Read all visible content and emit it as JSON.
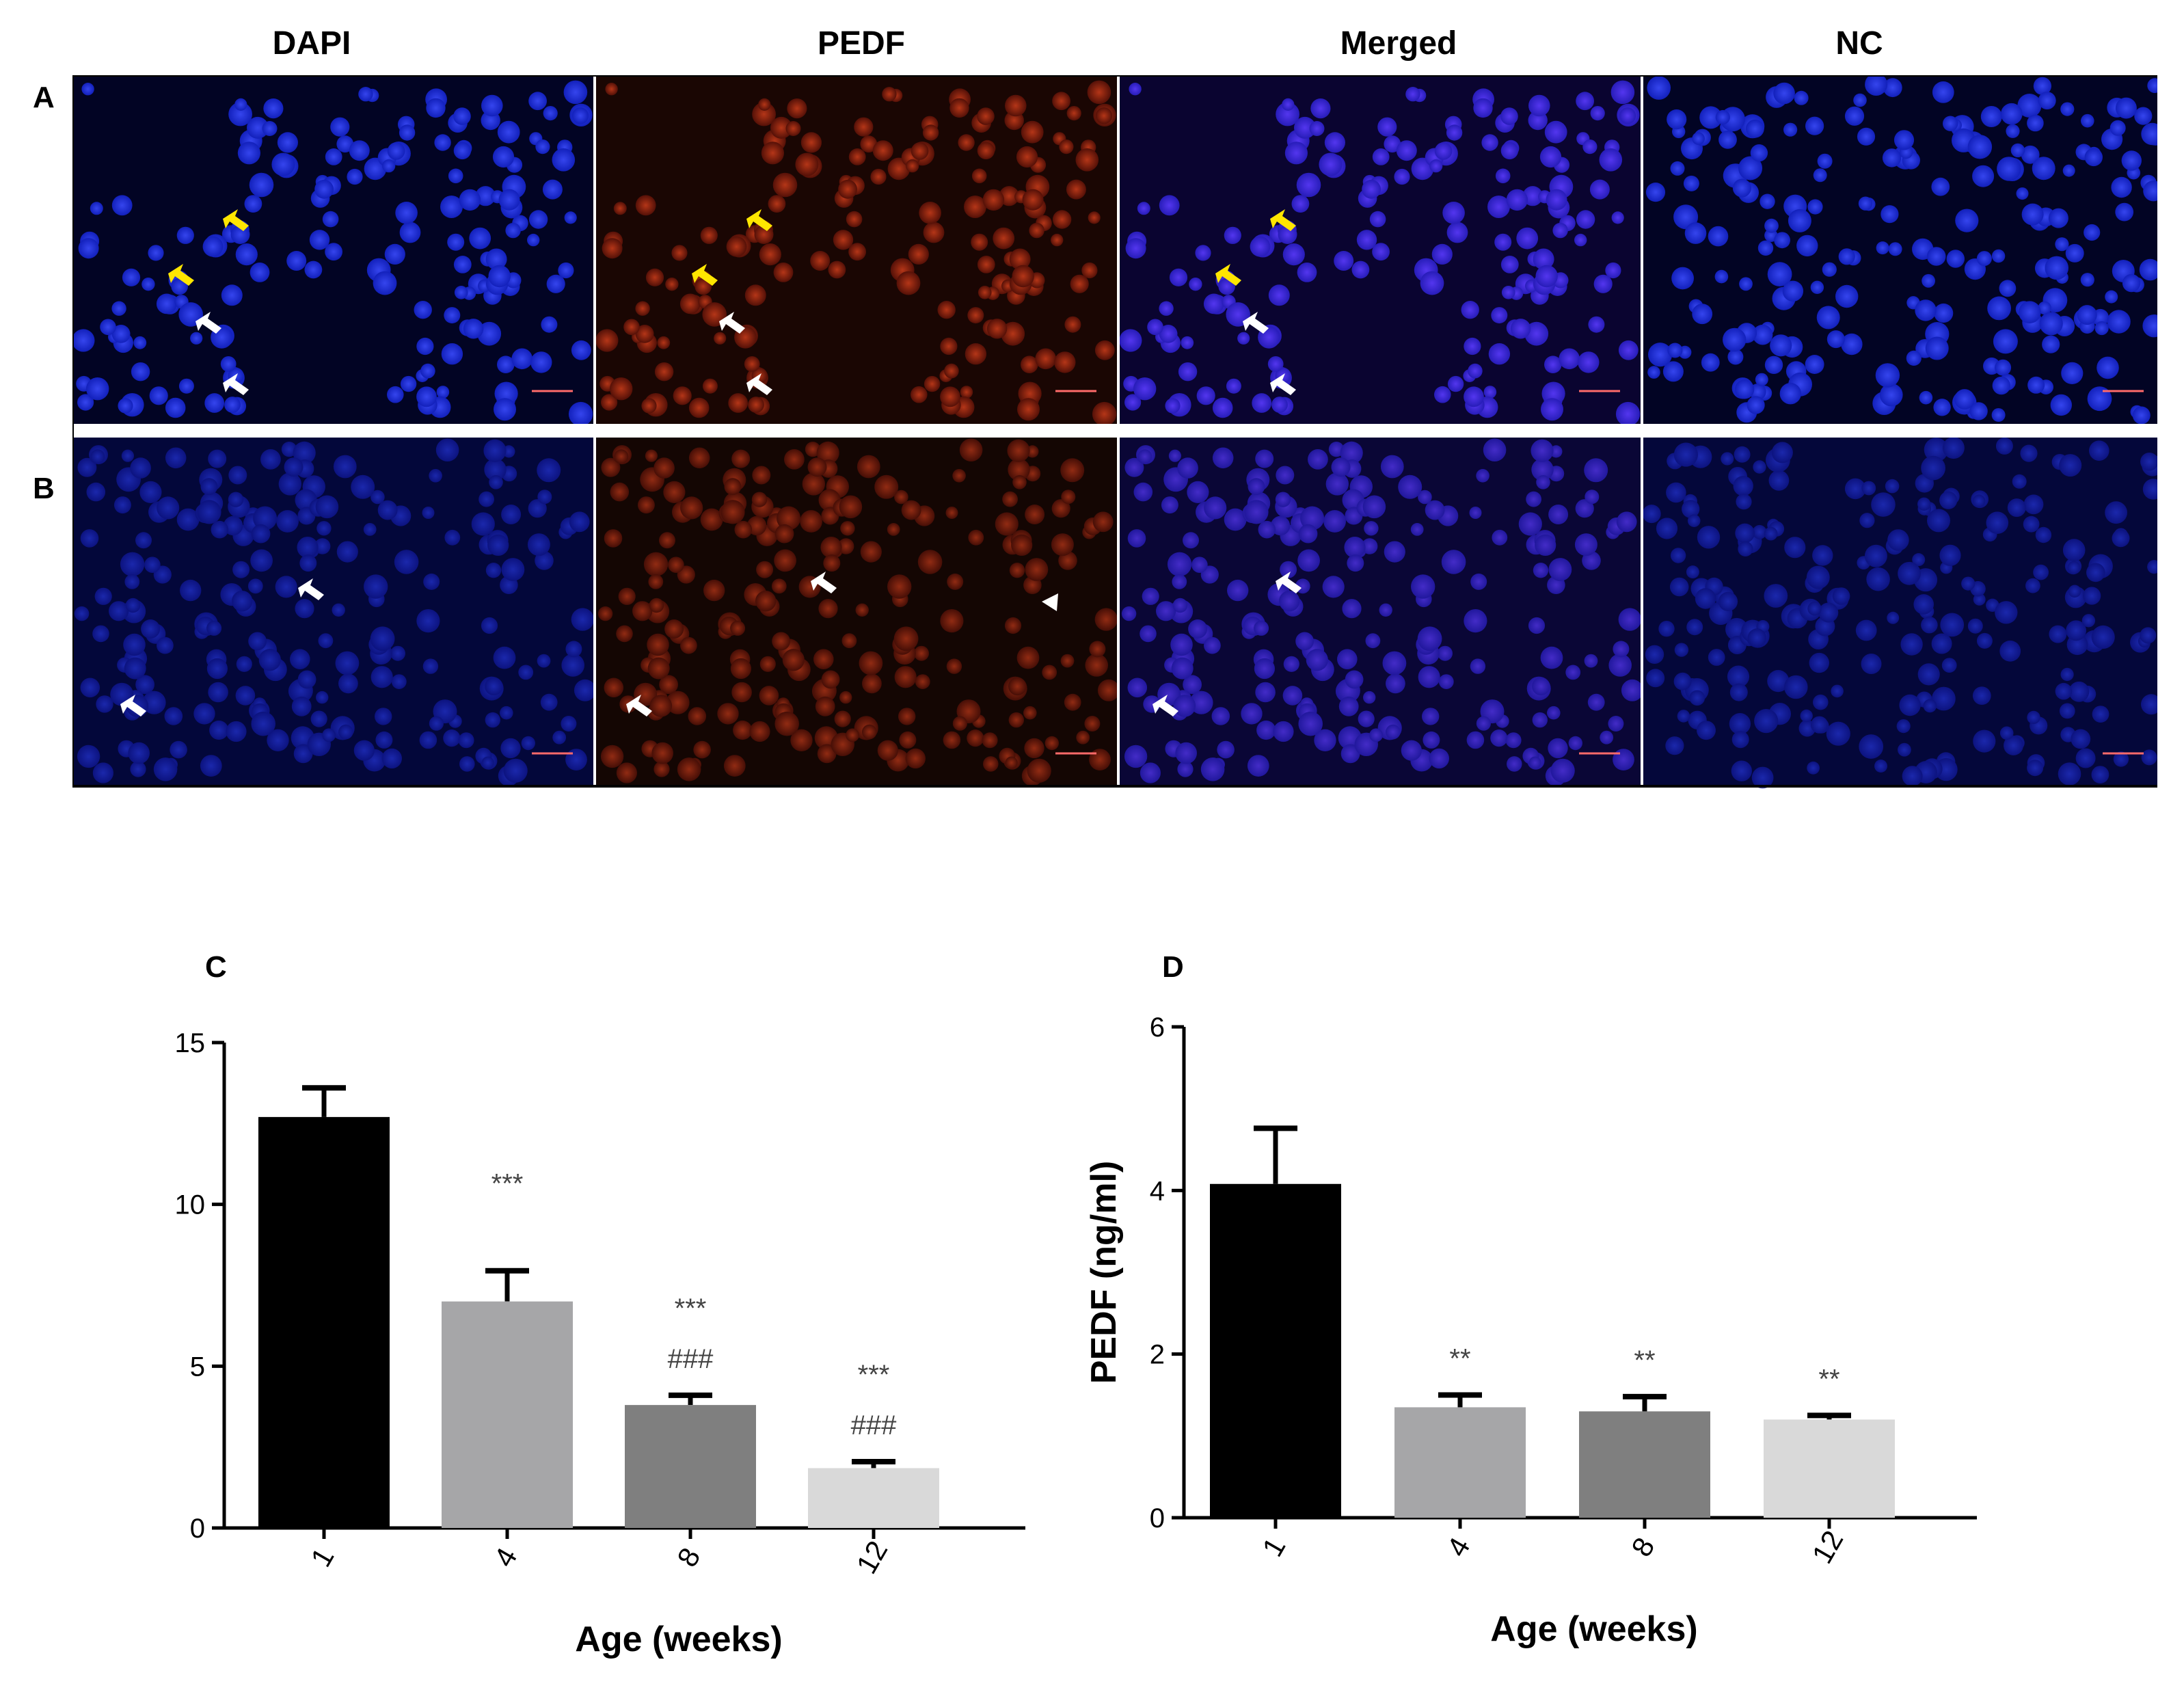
{
  "micrograph": {
    "columns": [
      "DAPI",
      "PEDF",
      "Merged",
      "NC"
    ],
    "rows": [
      "A",
      "B"
    ]
  },
  "chart_data": [
    {
      "panel": "C",
      "type": "bar",
      "categories": [
        "1",
        "4",
        "8",
        "12"
      ],
      "values": [
        12.7,
        7.0,
        3.8,
        1.85
      ],
      "errors": [
        0.9,
        0.95,
        0.3,
        0.2
      ],
      "annotations": [
        [
          "",
          ""
        ],
        [
          "***",
          ""
        ],
        [
          "***",
          "###"
        ],
        [
          "***",
          "###"
        ]
      ],
      "xlabel": "Age (weeks)",
      "ylabel": "",
      "ylim": [
        0,
        15
      ],
      "yticks": [
        "0",
        "5",
        "10",
        "15"
      ],
      "colors": [
        "#000000",
        "#a6a6a8",
        "#7f7f7f",
        "#d9d9d9"
      ],
      "grid": false,
      "legend": "none"
    },
    {
      "panel": "D",
      "type": "bar",
      "categories": [
        "1",
        "4",
        "8",
        "12"
      ],
      "values": [
        4.08,
        1.35,
        1.3,
        1.2
      ],
      "errors": [
        0.68,
        0.15,
        0.18,
        0.05
      ],
      "annotations": [
        [
          ""
        ],
        [
          "**"
        ],
        [
          "**"
        ],
        [
          "**"
        ]
      ],
      "xlabel": "Age (weeks)",
      "ylabel": "PEDF (ng/ml)",
      "ylim": [
        0,
        6
      ],
      "yticks": [
        "0",
        "2",
        "4",
        "6"
      ],
      "colors": [
        "#000000",
        "#a6a6a8",
        "#7f7f7f",
        "#d9d9d9"
      ],
      "grid": false,
      "legend": "none"
    }
  ]
}
